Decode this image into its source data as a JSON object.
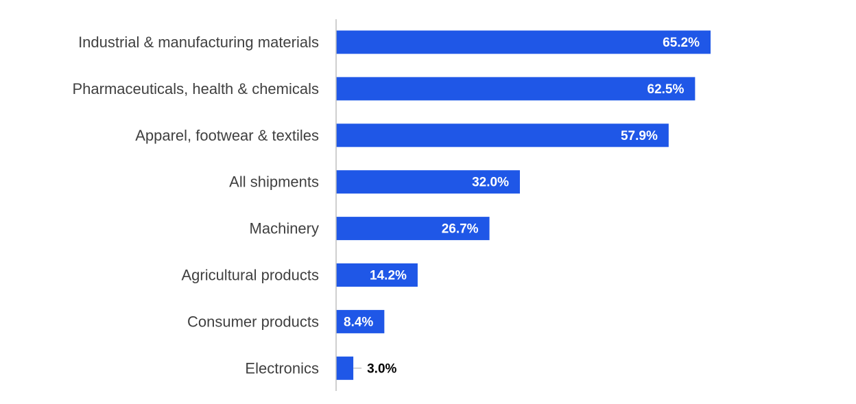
{
  "chart_data": {
    "type": "bar",
    "orientation": "horizontal",
    "categories": [
      "Industrial & manufacturing materials",
      "Pharmaceuticals, health & chemicals",
      "Apparel, footwear & textiles",
      "All shipments",
      "Machinery",
      "Agricultural products",
      "Consumer products",
      "Electronics"
    ],
    "values": [
      65.2,
      62.5,
      57.9,
      32.0,
      26.7,
      14.2,
      8.4,
      3.0
    ],
    "value_labels": [
      "65.2%",
      "62.5%",
      "57.9%",
      "32.0%",
      "26.7%",
      "14.2%",
      "8.4%",
      "3.0%"
    ],
    "title": "",
    "xlabel": "",
    "ylabel": "",
    "xlim": [
      0,
      90
    ],
    "grid": false,
    "legend": "none",
    "colors": {
      "bar": "#1f57e7",
      "axis": "#bfbfbf",
      "category_text": "#404040",
      "value_text_inside": "#ffffff",
      "value_text_outside": "#000000",
      "leader_line": "#a6a6a6"
    }
  }
}
